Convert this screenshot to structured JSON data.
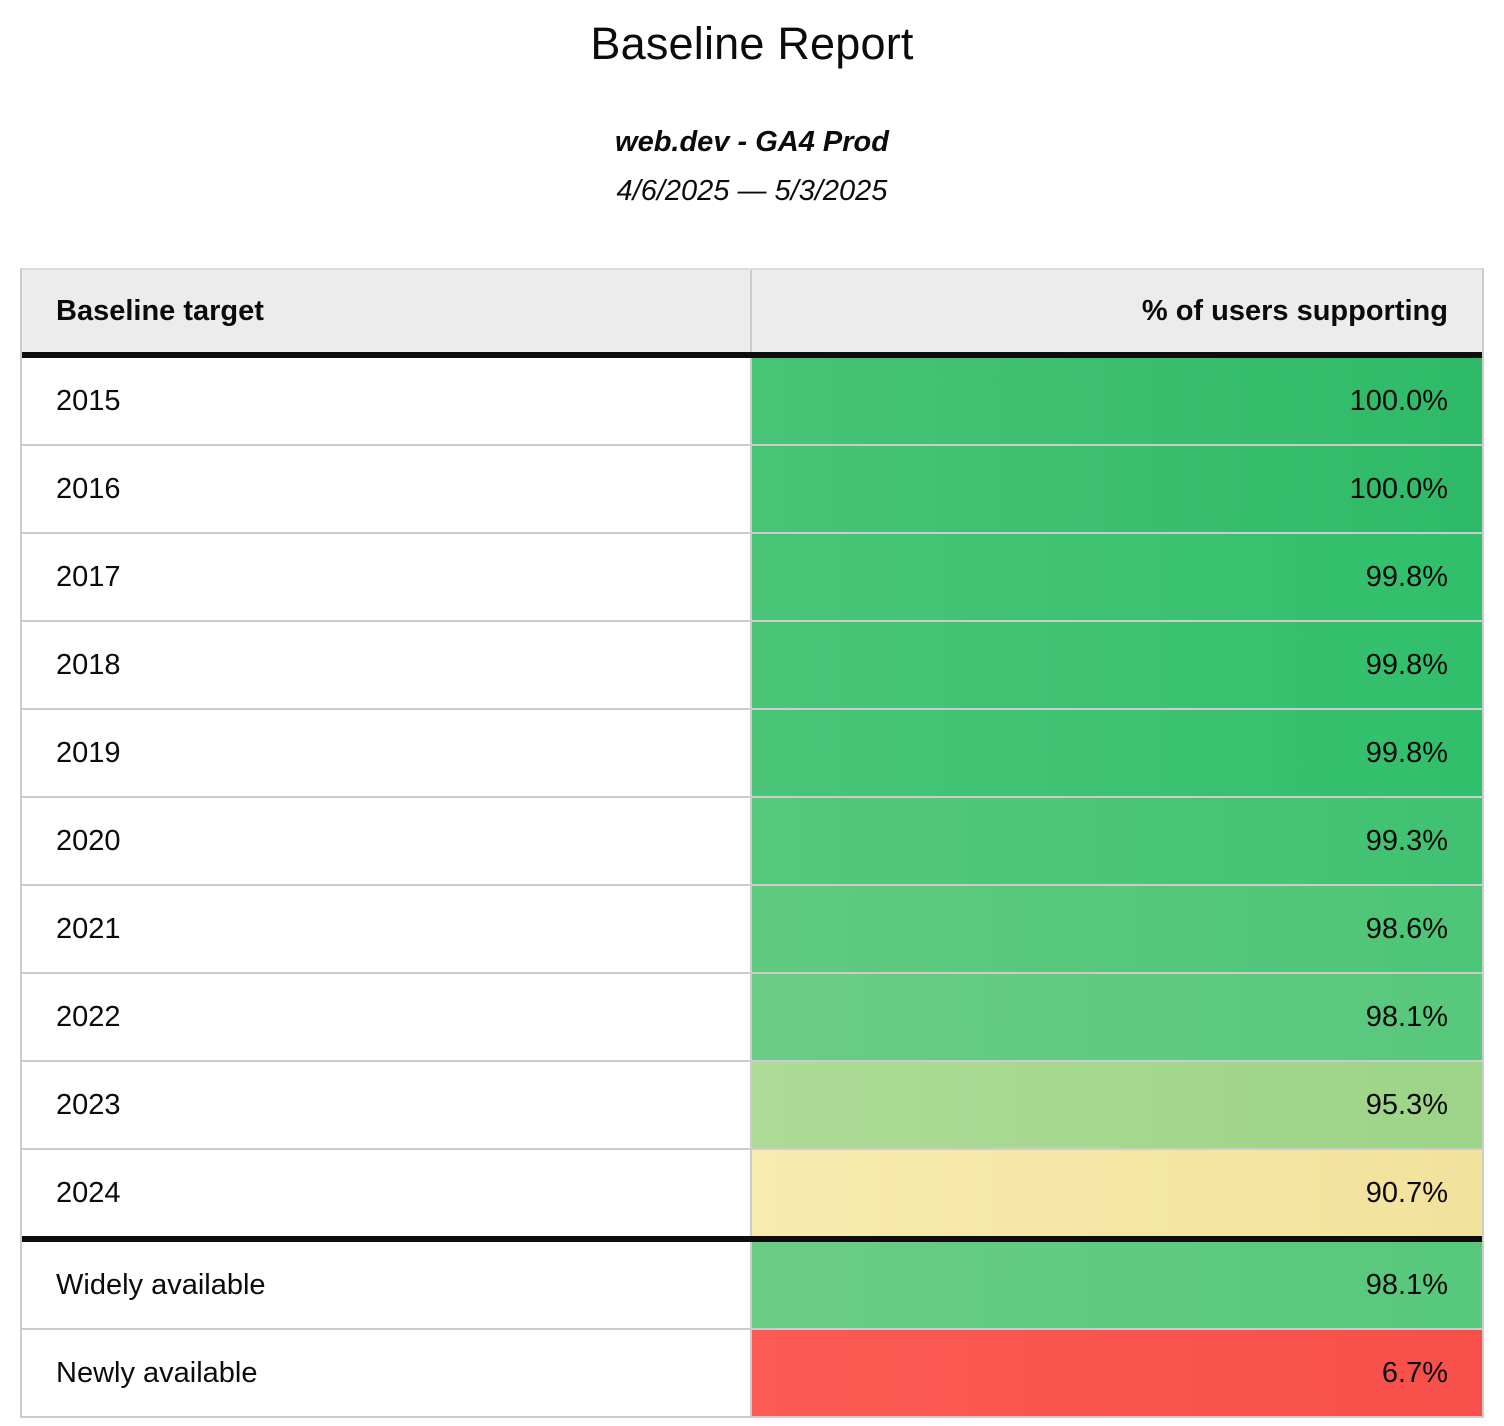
{
  "header": {
    "title": "Baseline Report",
    "subtitle": "web.dev - GA4 Prod",
    "date_range": "4/6/2025 — 5/3/2025"
  },
  "table": {
    "columns": {
      "target": "Baseline target",
      "support": "% of users supporting"
    },
    "rows": [
      {
        "label": "2015",
        "value": "100.0%",
        "color_left": "#48c476",
        "color_right": "#2eba68"
      },
      {
        "label": "2016",
        "value": "100.0%",
        "color_left": "#48c476",
        "color_right": "#2eba68"
      },
      {
        "label": "2017",
        "value": "99.8%",
        "color_left": "#4ac578",
        "color_right": "#30bf6b"
      },
      {
        "label": "2018",
        "value": "99.8%",
        "color_left": "#4ac578",
        "color_right": "#30bf6b"
      },
      {
        "label": "2019",
        "value": "99.8%",
        "color_left": "#4ac578",
        "color_right": "#30bf6b"
      },
      {
        "label": "2020",
        "value": "99.3%",
        "color_left": "#55c87c",
        "color_right": "#3fc271"
      },
      {
        "label": "2021",
        "value": "98.6%",
        "color_left": "#60ca80",
        "color_right": "#4cc577"
      },
      {
        "label": "2022",
        "value": "98.1%",
        "color_left": "#6acc86",
        "color_right": "#57c87c"
      },
      {
        "label": "2023",
        "value": "95.3%",
        "color_left": "#aedb96",
        "color_right": "#9dd487"
      },
      {
        "label": "2024",
        "value": "90.7%",
        "color_left": "#f9eab0",
        "color_right": "#f1e29c"
      },
      {
        "label": "Widely available",
        "value": "98.1%",
        "color_left": "#6acc86",
        "color_right": "#57c87c"
      },
      {
        "label": "Newly available",
        "value": "6.7%",
        "color_left": "#fb5b54",
        "color_right": "#f74f49"
      }
    ]
  },
  "chart_data": {
    "type": "table",
    "title": "Baseline Report",
    "subtitle": "web.dev - GA4 Prod",
    "date_range": "4/6/2025 — 5/3/2025",
    "columns": [
      "Baseline target",
      "% of users supporting"
    ],
    "categories": [
      "2015",
      "2016",
      "2017",
      "2018",
      "2019",
      "2020",
      "2021",
      "2022",
      "2023",
      "2024",
      "Widely available",
      "Newly available"
    ],
    "values": [
      100.0,
      100.0,
      99.8,
      99.8,
      99.8,
      99.3,
      98.6,
      98.1,
      95.3,
      90.7,
      98.1,
      6.7
    ],
    "value_format": "percent",
    "layout_hints": {
      "value_column_coloring": "red-yellow-green scale by value",
      "thick_divider_after": [
        "header",
        "2024"
      ],
      "label_align": "left",
      "value_align": "right"
    }
  }
}
